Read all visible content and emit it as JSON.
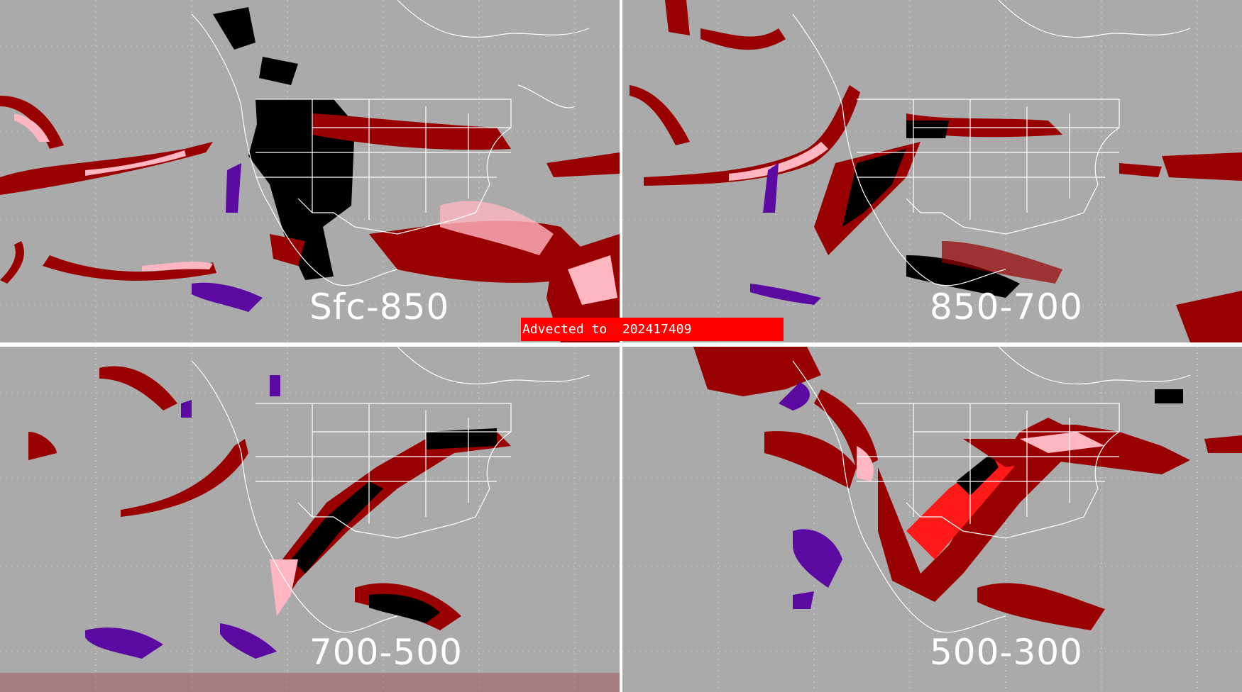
{
  "banner": {
    "text": "Advected to  202417409"
  },
  "panels": [
    {
      "id": "tl",
      "label": "Sfc-850"
    },
    {
      "id": "tr",
      "label": "850-700"
    },
    {
      "id": "bl",
      "label": "700-500"
    },
    {
      "id": "br",
      "label": "500-300"
    }
  ],
  "legend_colors": {
    "background": "#aaaaaa",
    "map_lines": "#ffffff",
    "dark_red": "#990000",
    "red": "#ff1a1a",
    "pink": "#ffb6c1",
    "black": "#000000",
    "purple": "#5a0aa0"
  }
}
